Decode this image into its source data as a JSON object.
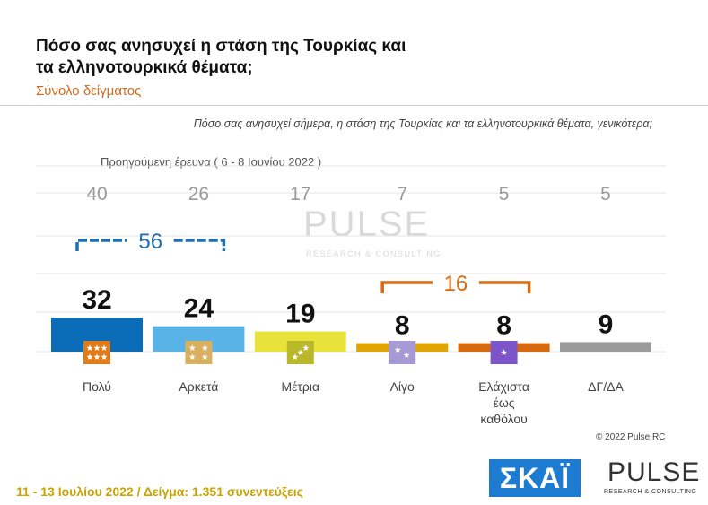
{
  "title": "Πόσο σας ανησυχεί η στάση της Τουρκίας και τα ελληνοτουρκικά θέματα;",
  "subtitle": "Σύνολο δείγματος",
  "question": "Πόσο σας ανησυχεί σήμερα, η στάση της Τουρκίας και τα ελληνοτουρκικά θέματα, γενικότερα;",
  "previous_survey_label": "Προηγούμενη έρευνα  ( 6 - 8 Ιουνίου  2022 )",
  "chart_data": {
    "type": "bar",
    "categories": [
      "Πολύ",
      "Αρκετά",
      "Μέτρια",
      "Λίγο",
      "Ελάχιστα\nέως\nκαθόλου",
      "ΔΓ/ΔΑ"
    ],
    "values": [
      32,
      24,
      19,
      8,
      8,
      9
    ],
    "previous_values": [
      40,
      26,
      17,
      7,
      5,
      5
    ],
    "colors": [
      "#0b6cb8",
      "#5ab3e6",
      "#e8e23a",
      "#e0a500",
      "#d9690f",
      "#9b9b9b"
    ],
    "star_colors": [
      "#e07b1a",
      "#d9b060",
      "#b8b82a",
      "#a69ad6",
      "#7c55c8",
      ""
    ],
    "groups": [
      {
        "label": "56",
        "from": 0,
        "to": 1,
        "color": "#1e6fb0"
      },
      {
        "label": "16",
        "from": 3,
        "to": 4,
        "color": "#d9690f"
      }
    ]
  },
  "watermark": {
    "name": "PULSE",
    "sub": "RESEARCH & CONSULTING"
  },
  "copyright": "© 2022 Pulse RC",
  "footer": "11 - 13  Ιουλίου  2022  /  Δείγμα:  1.351 συνεντεύξεις",
  "logos": {
    "skai": "ΣΚΑΪ",
    "pulse": "PULSE",
    "pulse_sub": "RESEARCH & CONSULTING"
  }
}
